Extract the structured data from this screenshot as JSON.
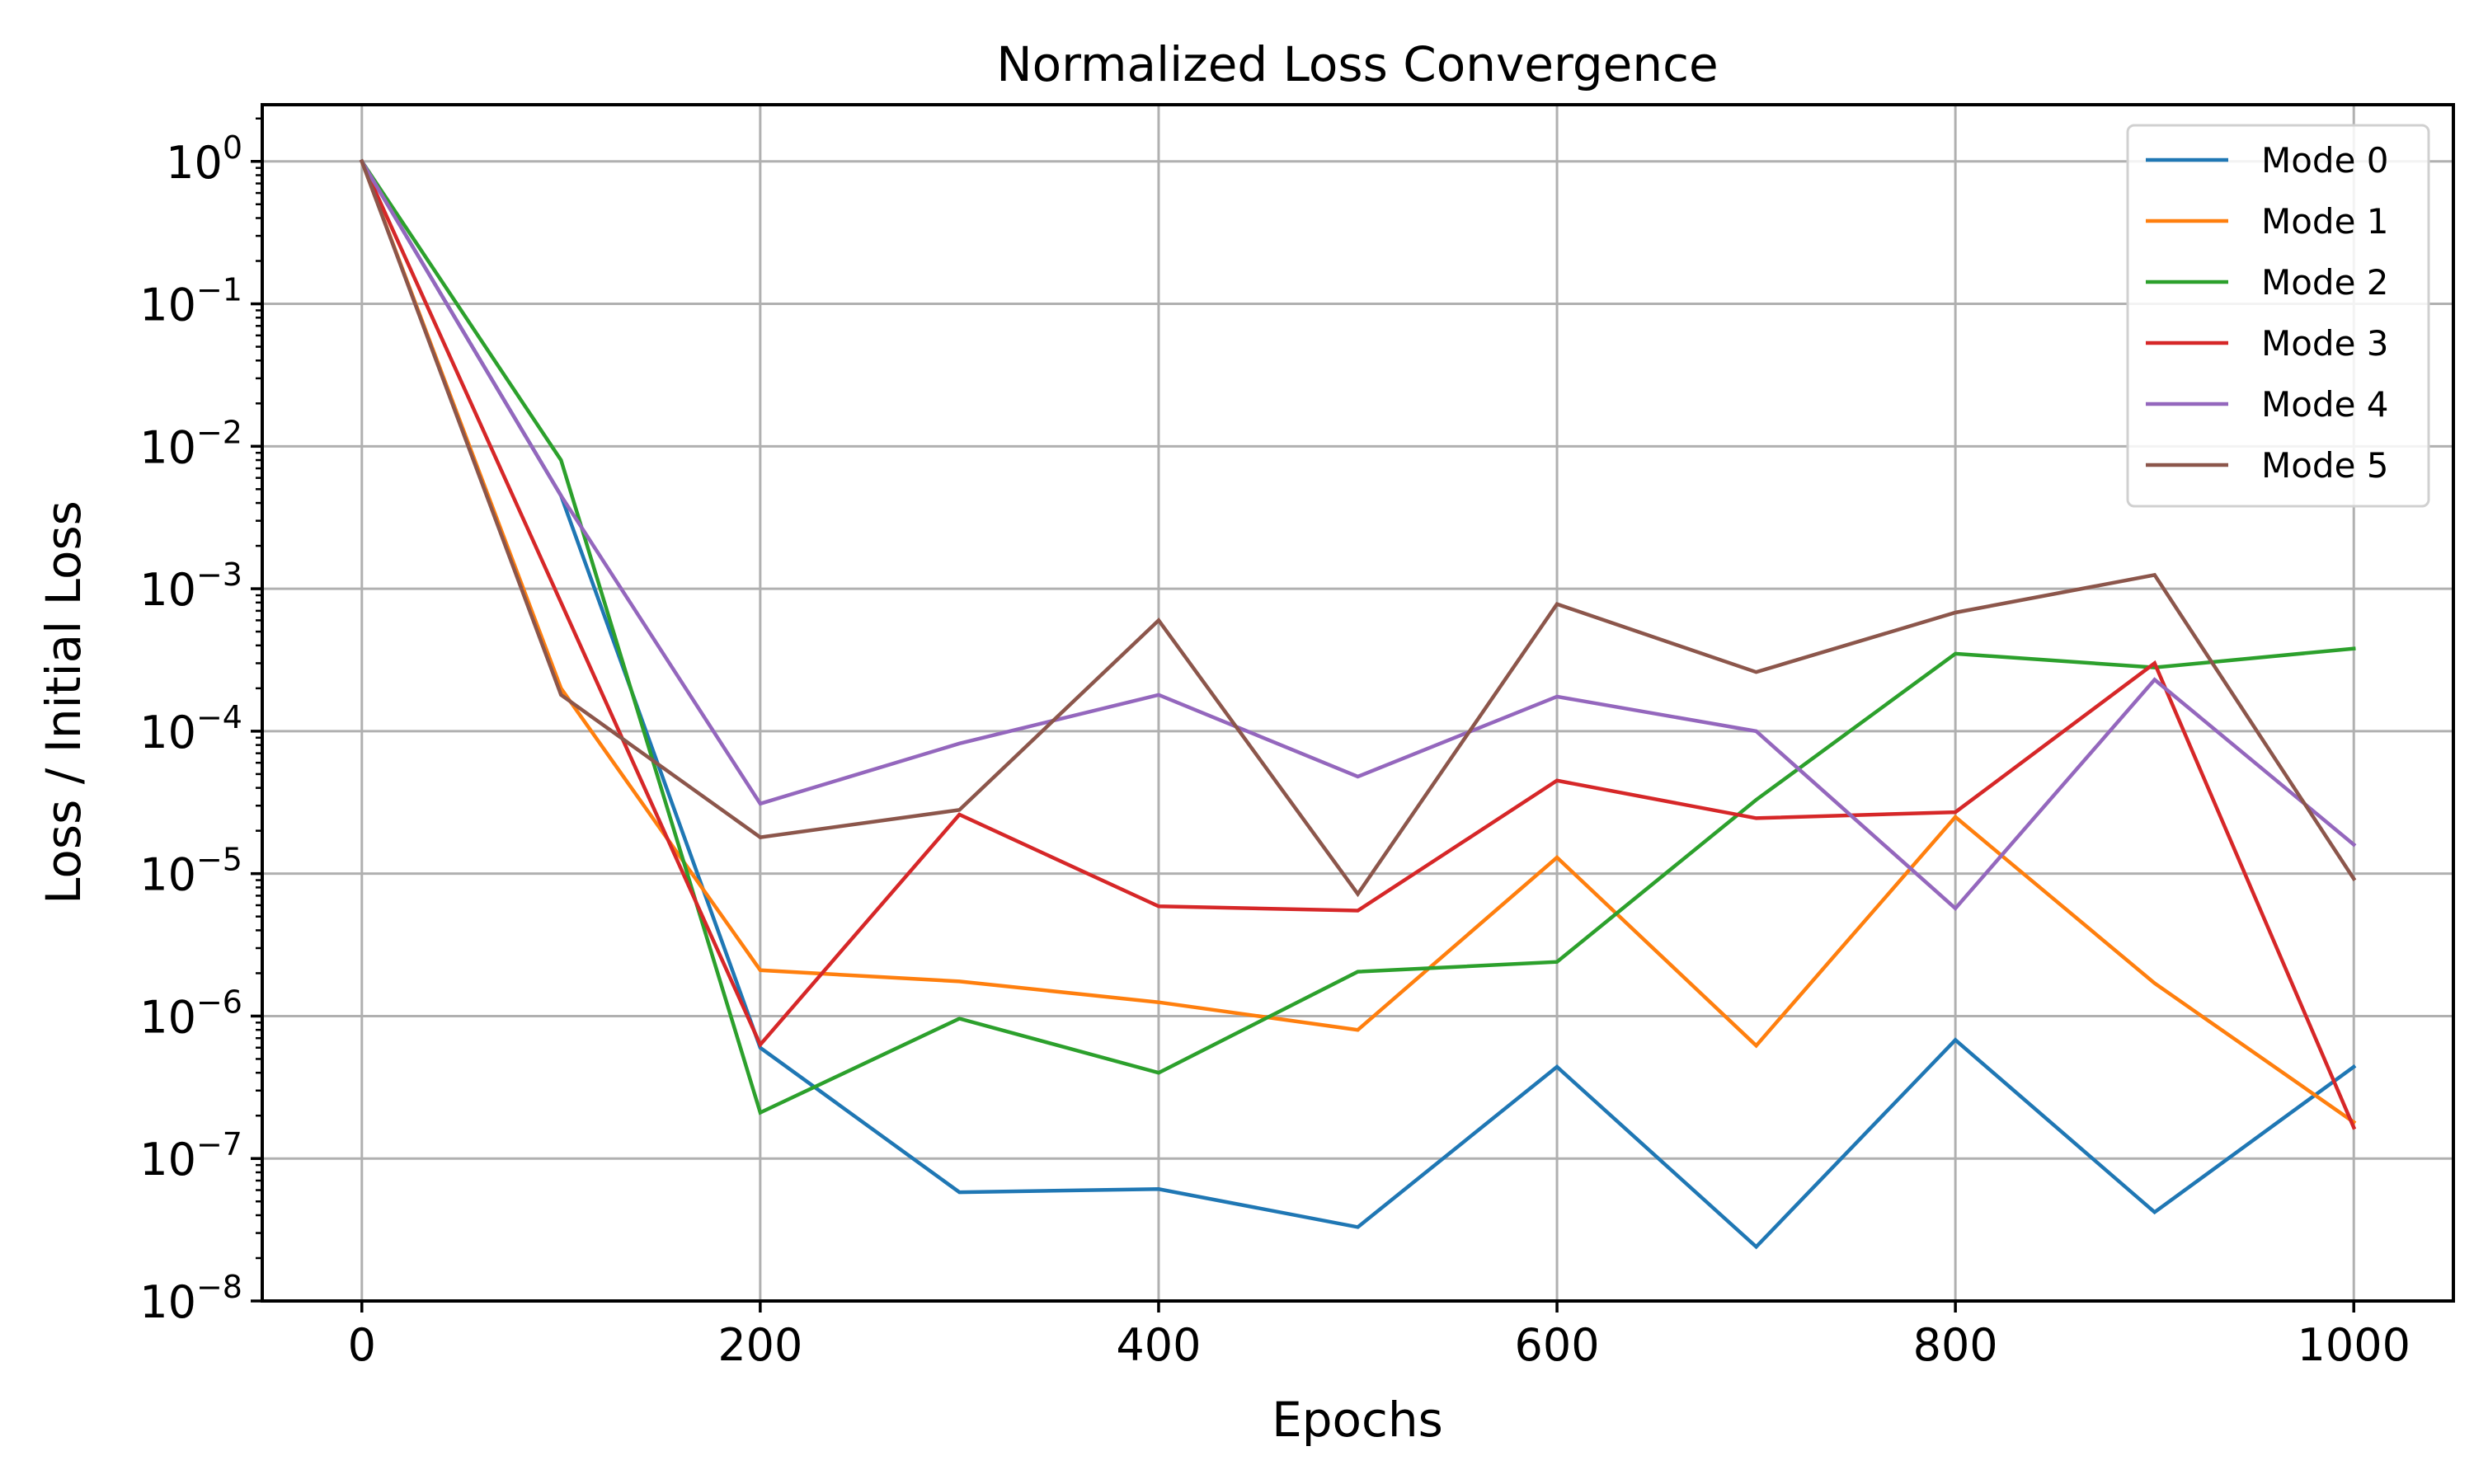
{
  "chart_data": {
    "type": "line",
    "title": "Normalized Loss Convergence",
    "xlabel": "Epochs",
    "ylabel": "Loss / Initial Loss",
    "x": [
      0,
      100,
      200,
      300,
      400,
      500,
      600,
      700,
      800,
      900,
      1000
    ],
    "xlim": [
      -50,
      1050
    ],
    "xticks": [
      0,
      200,
      400,
      600,
      800,
      1000
    ],
    "xtick_labels": [
      "0",
      "200",
      "400",
      "600",
      "800",
      "1000"
    ],
    "yscale": "log",
    "ylim": [
      1e-08,
      2.5
    ],
    "yticks": [
      {
        "value": 1,
        "base": "10",
        "exp": "0"
      },
      {
        "value": 0.1,
        "base": "10",
        "exp": "−1"
      },
      {
        "value": 0.01,
        "base": "10",
        "exp": "−2"
      },
      {
        "value": 0.001,
        "base": "10",
        "exp": "−3"
      },
      {
        "value": 0.0001,
        "base": "10",
        "exp": "−4"
      },
      {
        "value": 1e-05,
        "base": "10",
        "exp": "−5"
      },
      {
        "value": 1e-06,
        "base": "10",
        "exp": "−6"
      },
      {
        "value": 1e-07,
        "base": "10",
        "exp": "−7"
      },
      {
        "value": 1e-08,
        "base": "10",
        "exp": "−8"
      }
    ],
    "grid": true,
    "legend_position": "top-right",
    "series": [
      {
        "name": "Mode 0",
        "color": "#1f77b4",
        "values": [
          1,
          0.0045,
          6e-07,
          5.8e-08,
          6.1e-08,
          3.3e-08,
          4.4e-07,
          2.4e-08,
          6.8e-07,
          4.2e-08,
          4.4e-07
        ]
      },
      {
        "name": "Mode 1",
        "color": "#ff7f0e",
        "values": [
          1,
          0.0002,
          2.1e-06,
          1.75e-06,
          1.25e-06,
          8e-07,
          1.3e-05,
          6.2e-07,
          2.5e-05,
          1.7e-06,
          1.8e-07
        ]
      },
      {
        "name": "Mode 2",
        "color": "#2ca02c",
        "values": [
          1,
          0.008,
          2.1e-07,
          9.6e-07,
          4e-07,
          2.05e-06,
          2.4e-06,
          3.3e-05,
          0.00035,
          0.00028,
          0.00038
        ]
      },
      {
        "name": "Mode 3",
        "color": "#d62728",
        "values": [
          1,
          0.0008,
          6.3e-07,
          2.6e-05,
          5.9e-06,
          5.5e-06,
          4.5e-05,
          2.45e-05,
          2.7e-05,
          0.0003,
          1.65e-07
        ]
      },
      {
        "name": "Mode 4",
        "color": "#9467bd",
        "values": [
          1,
          0.0045,
          3.1e-05,
          8.2e-05,
          0.00018,
          4.8e-05,
          0.000175,
          0.0001,
          5.7e-06,
          0.00023,
          1.6e-05
        ]
      },
      {
        "name": "Mode 5",
        "color": "#8c564b",
        "values": [
          1,
          0.00018,
          1.8e-05,
          2.8e-05,
          0.0006,
          7.2e-06,
          0.00078,
          0.00026,
          0.00068,
          0.00125,
          9.2e-06
        ]
      }
    ]
  }
}
